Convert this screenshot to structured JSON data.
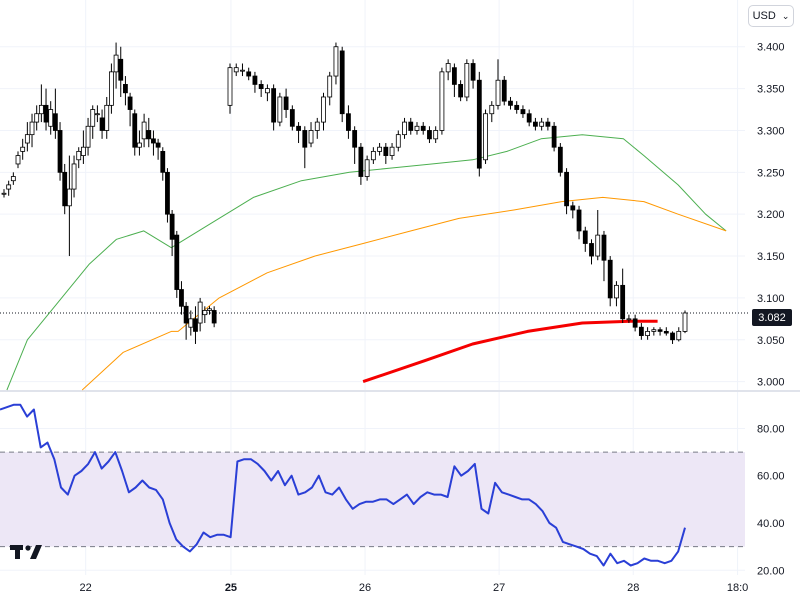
{
  "currency": {
    "label": "USD",
    "chevron_icon": "chevron-down-icon"
  },
  "last_price_label": "3.082",
  "logo": {
    "name": "tradingview-logo",
    "text": "TV"
  },
  "colors": {
    "up": "#ffffff",
    "down": "#000000",
    "wick": "#000000",
    "ma_short": "#4caf50",
    "ma_mid": "#ff9800",
    "ma_long": "#f50000",
    "rsi": "#2a3fd6",
    "rsi_band": "#ede7f6"
  },
  "chart_data": {
    "type": "candlestick",
    "price_axis": {
      "ticks": [
        "3.400",
        "3.350",
        "3.300",
        "3.250",
        "3.200",
        "3.150",
        "3.100",
        "3.050",
        "3.000"
      ],
      "ylim": [
        2.99,
        3.42
      ]
    },
    "time_axis": {
      "ticks": [
        "22",
        "25",
        "26",
        "27",
        "28",
        "18:0"
      ]
    },
    "last_price": 3.082,
    "candles": [
      [
        3.225,
        3.225,
        3.23,
        3.22
      ],
      [
        3.23,
        3.235,
        3.24,
        3.222
      ],
      [
        3.24,
        3.245,
        3.25,
        3.235
      ],
      [
        3.26,
        3.27,
        3.275,
        3.255
      ],
      [
        3.275,
        3.28,
        3.29,
        3.265
      ],
      [
        3.285,
        3.295,
        3.31,
        3.275
      ],
      [
        3.295,
        3.31,
        3.32,
        3.28
      ],
      [
        3.31,
        3.32,
        3.33,
        3.3
      ],
      [
        3.32,
        3.33,
        3.355,
        3.31
      ],
      [
        3.33,
        3.31,
        3.35,
        3.3
      ],
      [
        3.305,
        3.325,
        3.335,
        3.295
      ],
      [
        3.32,
        3.3,
        3.35,
        3.29
      ],
      [
        3.3,
        3.25,
        3.31,
        3.24
      ],
      [
        3.25,
        3.21,
        3.26,
        3.2
      ],
      [
        3.21,
        3.23,
        3.27,
        3.15
      ],
      [
        3.23,
        3.26,
        3.27,
        3.22
      ],
      [
        3.265,
        3.275,
        3.28,
        3.255
      ],
      [
        3.27,
        3.28,
        3.3,
        3.26
      ],
      [
        3.28,
        3.305,
        3.315,
        3.27
      ],
      [
        3.305,
        3.325,
        3.33,
        3.29
      ],
      [
        3.32,
        3.32,
        3.33,
        3.31
      ],
      [
        3.315,
        3.3,
        3.325,
        3.29
      ],
      [
        3.3,
        3.33,
        3.34,
        3.29
      ],
      [
        3.33,
        3.37,
        3.38,
        3.32
      ],
      [
        3.37,
        3.39,
        3.405,
        3.35
      ],
      [
        3.385,
        3.36,
        3.4,
        3.34
      ],
      [
        3.355,
        3.345,
        3.365,
        3.33
      ],
      [
        3.34,
        3.325,
        3.345,
        3.305
      ],
      [
        3.32,
        3.28,
        3.325,
        3.27
      ],
      [
        3.28,
        3.285,
        3.3,
        3.27
      ],
      [
        3.29,
        3.31,
        3.32,
        3.28
      ],
      [
        3.3,
        3.29,
        3.315,
        3.28
      ],
      [
        3.29,
        3.285,
        3.3,
        3.27
      ],
      [
        3.285,
        3.28,
        3.29,
        3.265
      ],
      [
        3.275,
        3.25,
        3.28,
        3.24
      ],
      [
        3.25,
        3.2,
        3.255,
        3.19
      ],
      [
        3.2,
        3.17,
        3.205,
        3.15
      ],
      [
        3.175,
        3.11,
        3.18,
        3.1
      ],
      [
        3.11,
        3.09,
        3.12,
        3.08
      ],
      [
        3.09,
        3.07,
        3.095,
        3.05
      ],
      [
        3.065,
        3.075,
        3.085,
        3.055
      ],
      [
        3.075,
        3.06,
        3.09,
        3.045
      ],
      [
        3.07,
        3.095,
        3.1,
        3.06
      ],
      [
        3.08,
        3.085,
        3.09,
        3.07
      ],
      [
        3.085,
        3.087,
        3.09,
        3.08
      ],
      [
        3.085,
        3.07,
        3.09,
        3.065
      ],
      [
        3.33,
        3.375,
        3.38,
        3.32
      ],
      [
        3.37,
        3.375,
        3.38,
        3.365
      ],
      [
        3.372,
        3.372,
        3.38,
        3.365
      ],
      [
        3.37,
        3.365,
        3.375,
        3.36
      ],
      [
        3.365,
        3.355,
        3.37,
        3.345
      ],
      [
        3.355,
        3.35,
        3.36,
        3.34
      ],
      [
        3.345,
        3.35,
        3.355,
        3.335
      ],
      [
        3.35,
        3.31,
        3.355,
        3.3
      ],
      [
        3.31,
        3.34,
        3.345,
        3.305
      ],
      [
        3.34,
        3.325,
        3.35,
        3.315
      ],
      [
        3.325,
        3.305,
        3.33,
        3.3
      ],
      [
        3.305,
        3.3,
        3.31,
        3.285
      ],
      [
        3.3,
        3.28,
        3.305,
        3.255
      ],
      [
        3.285,
        3.3,
        3.31,
        3.28
      ],
      [
        3.3,
        3.31,
        3.315,
        3.29
      ],
      [
        3.31,
        3.34,
        3.345,
        3.3
      ],
      [
        3.34,
        3.365,
        3.37,
        3.33
      ],
      [
        3.365,
        3.4,
        3.405,
        3.355
      ],
      [
        3.395,
        3.32,
        3.4,
        3.31
      ],
      [
        3.32,
        3.3,
        3.33,
        3.29
      ],
      [
        3.3,
        3.28,
        3.305,
        3.26
      ],
      [
        3.28,
        3.245,
        3.285,
        3.235
      ],
      [
        3.245,
        3.265,
        3.27,
        3.24
      ],
      [
        3.265,
        3.275,
        3.28,
        3.26
      ],
      [
        3.275,
        3.28,
        3.285,
        3.27
      ],
      [
        3.28,
        3.27,
        3.285,
        3.26
      ],
      [
        3.27,
        3.28,
        3.285,
        3.265
      ],
      [
        3.28,
        3.295,
        3.3,
        3.275
      ],
      [
        3.295,
        3.31,
        3.315,
        3.29
      ],
      [
        3.31,
        3.3,
        3.315,
        3.295
      ],
      [
        3.3,
        3.305,
        3.31,
        3.295
      ],
      [
        3.305,
        3.3,
        3.31,
        3.295
      ],
      [
        3.3,
        3.29,
        3.305,
        3.285
      ],
      [
        3.29,
        3.3,
        3.305,
        3.285
      ],
      [
        3.3,
        3.37,
        3.375,
        3.295
      ],
      [
        3.37,
        3.38,
        3.385,
        3.36
      ],
      [
        3.375,
        3.355,
        3.38,
        3.34
      ],
      [
        3.355,
        3.34,
        3.36,
        3.335
      ],
      [
        3.34,
        3.38,
        3.385,
        3.335
      ],
      [
        3.38,
        3.36,
        3.385,
        3.35
      ],
      [
        3.36,
        3.255,
        3.37,
        3.245
      ],
      [
        3.265,
        3.32,
        3.325,
        3.26
      ],
      [
        3.32,
        3.33,
        3.335,
        3.31
      ],
      [
        3.33,
        3.36,
        3.385,
        3.325
      ],
      [
        3.36,
        3.335,
        3.365,
        3.33
      ],
      [
        3.335,
        3.33,
        3.34,
        3.325
      ],
      [
        3.33,
        3.325,
        3.335,
        3.32
      ],
      [
        3.325,
        3.32,
        3.33,
        3.315
      ],
      [
        3.32,
        3.31,
        3.325,
        3.305
      ],
      [
        3.31,
        3.305,
        3.315,
        3.3
      ],
      [
        3.305,
        3.31,
        3.315,
        3.3
      ],
      [
        3.31,
        3.305,
        3.315,
        3.3
      ],
      [
        3.305,
        3.28,
        3.31,
        3.275
      ],
      [
        3.28,
        3.25,
        3.285,
        3.245
      ],
      [
        3.25,
        3.21,
        3.255,
        3.2
      ],
      [
        3.21,
        3.205,
        3.215,
        3.195
      ],
      [
        3.205,
        3.18,
        3.21,
        3.17
      ],
      [
        3.18,
        3.165,
        3.185,
        3.155
      ],
      [
        3.165,
        3.15,
        3.17,
        3.14
      ],
      [
        3.15,
        3.175,
        3.205,
        3.145
      ],
      [
        3.175,
        3.145,
        3.18,
        3.12
      ],
      [
        3.145,
        3.1,
        3.15,
        3.09
      ],
      [
        3.1,
        3.115,
        3.12,
        3.09
      ],
      [
        3.115,
        3.075,
        3.135,
        3.07
      ],
      [
        3.075,
        3.075,
        3.08,
        3.07
      ],
      [
        3.075,
        3.065,
        3.08,
        3.06
      ],
      [
        3.065,
        3.055,
        3.07,
        3.05
      ],
      [
        3.055,
        3.06,
        3.065,
        3.05
      ],
      [
        3.06,
        3.062,
        3.065,
        3.055
      ],
      [
        3.062,
        3.06,
        3.065,
        3.055
      ],
      [
        3.06,
        3.058,
        3.065,
        3.055
      ],
      [
        3.058,
        3.05,
        3.06,
        3.045
      ],
      [
        3.05,
        3.06,
        3.065,
        3.048
      ],
      [
        3.06,
        3.082,
        3.085,
        3.058
      ]
    ],
    "ma_short": [
      [
        2.99,
        1
      ],
      [
        3.05,
        4
      ],
      [
        3.09,
        8
      ],
      [
        3.14,
        13
      ],
      [
        3.17,
        17
      ],
      [
        3.18,
        21
      ],
      [
        3.16,
        25
      ],
      [
        3.19,
        31
      ],
      [
        3.22,
        37
      ],
      [
        3.24,
        44
      ],
      [
        3.25,
        51
      ],
      [
        3.255,
        57
      ],
      [
        3.26,
        63
      ],
      [
        3.265,
        69
      ],
      [
        3.275,
        74
      ],
      [
        3.29,
        79
      ],
      [
        3.295,
        85
      ],
      [
        3.29,
        91
      ],
      [
        3.27,
        94
      ],
      [
        3.235,
        99
      ],
      [
        3.2,
        103
      ],
      [
        3.18,
        106
      ]
    ],
    "ma_mid": [
      [
        2.99,
        12
      ],
      [
        3.035,
        18
      ],
      [
        3.06,
        25
      ],
      [
        3.06,
        26
      ],
      [
        3.1,
        32
      ],
      [
        3.13,
        39
      ],
      [
        3.15,
        46
      ],
      [
        3.165,
        53
      ],
      [
        3.18,
        60
      ],
      [
        3.195,
        67
      ],
      [
        3.205,
        75
      ],
      [
        3.215,
        82
      ],
      [
        3.22,
        88
      ],
      [
        3.215,
        94
      ],
      [
        3.2,
        99
      ],
      [
        3.18,
        106
      ]
    ],
    "ma_long": [
      [
        3.0,
        53
      ],
      [
        3.025,
        62
      ],
      [
        3.045,
        69
      ],
      [
        3.06,
        77
      ],
      [
        3.07,
        85
      ],
      [
        3.072,
        92
      ],
      [
        3.072,
        96
      ]
    ],
    "rsi": {
      "ticks": [
        "80.00",
        "60.00",
        "40.00",
        "20.00"
      ],
      "ylim": [
        18,
        95
      ],
      "band": [
        30,
        70
      ],
      "values": [
        88,
        89,
        90,
        90,
        85,
        88,
        72,
        74,
        67,
        55,
        52,
        60,
        62,
        65,
        70,
        63,
        66,
        70,
        62,
        53,
        55,
        58,
        55,
        54,
        50,
        40,
        33,
        30,
        28,
        31,
        36,
        34,
        35,
        35,
        34,
        66,
        67,
        67,
        65,
        62,
        58,
        62,
        56,
        60,
        52,
        53,
        55,
        60,
        53,
        52,
        55,
        50,
        46,
        48,
        49,
        49,
        50,
        50,
        48,
        50,
        52,
        48,
        51,
        53,
        52,
        52,
        51,
        64,
        60,
        62,
        65,
        46,
        44,
        57,
        53,
        52,
        51,
        50,
        50,
        48,
        45,
        40,
        38,
        32,
        31,
        30,
        29,
        27,
        26,
        22,
        27,
        23,
        24,
        22,
        23,
        25,
        24,
        24,
        23,
        24,
        28,
        38
      ]
    }
  }
}
